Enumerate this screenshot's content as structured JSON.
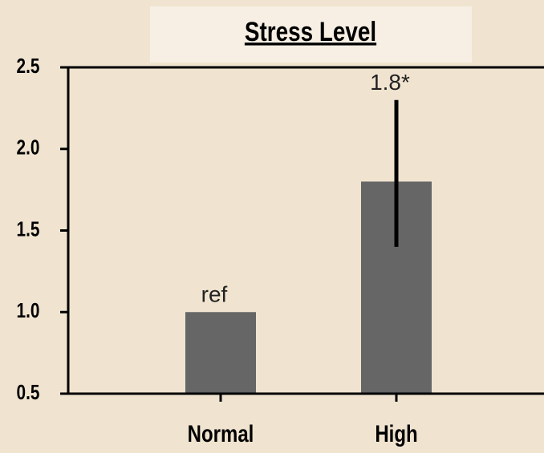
{
  "chart_data": {
    "type": "bar",
    "title": "Stress Level",
    "categories": [
      "Normal",
      "High"
    ],
    "values": [
      1.0,
      1.8
    ],
    "value_labels": [
      "ref",
      "1.8*"
    ],
    "error_lower": [
      null,
      1.4
    ],
    "error_upper": [
      null,
      2.3
    ],
    "color": "#666666",
    "ylim": [
      0.5,
      2.5
    ],
    "yticks": [
      0.5,
      {
        "value": 1.0,
        "label": "1.0"
      },
      1.5,
      {
        "value": 2.0,
        "label": "2.0"
      },
      2.5
    ]
  }
}
